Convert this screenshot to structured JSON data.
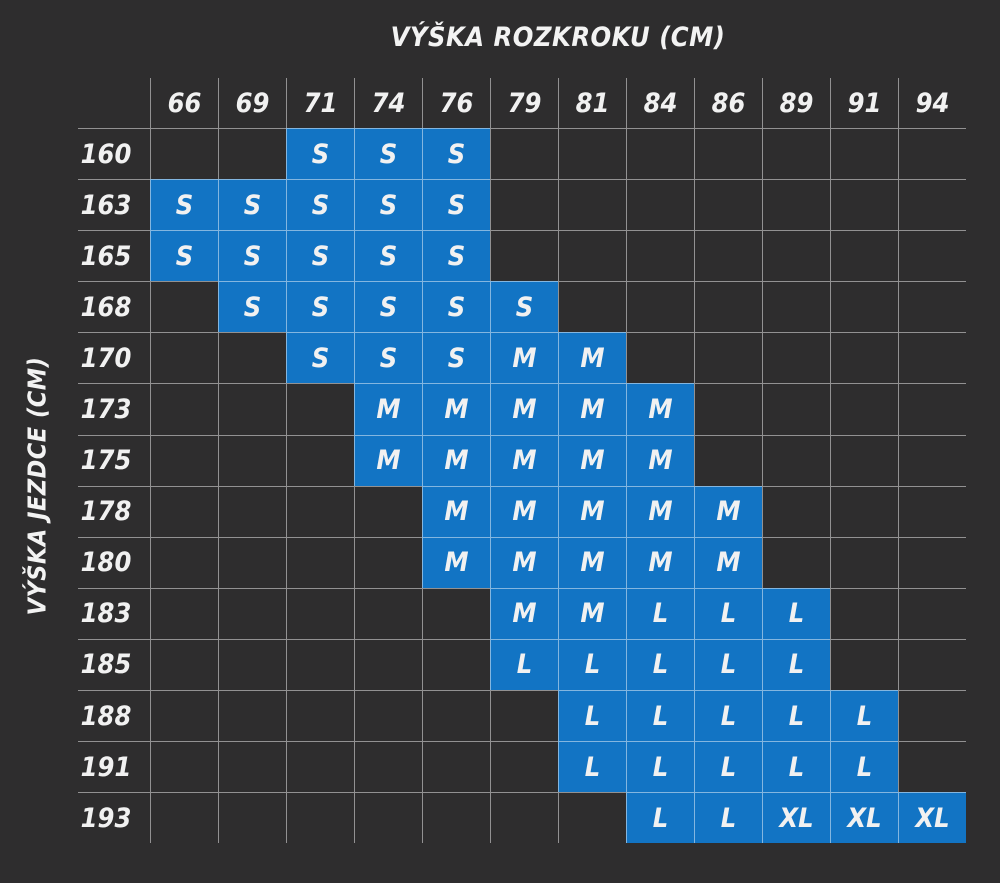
{
  "chart_data": {
    "type": "heatmap",
    "x_axis_title": "VÝŠKA ROZKROKU (CM)",
    "y_axis_title": "VÝŠKA JEZDCE (CM)",
    "x_categories": [
      "66",
      "69",
      "71",
      "74",
      "76",
      "79",
      "81",
      "84",
      "86",
      "89",
      "91",
      "94"
    ],
    "y_categories": [
      "160",
      "163",
      "165",
      "168",
      "170",
      "173",
      "175",
      "178",
      "180",
      "183",
      "185",
      "188",
      "191",
      "193"
    ],
    "cell_values_legend": [
      "S",
      "M",
      "L",
      "XL"
    ],
    "matrix": [
      [
        "",
        "",
        "S",
        "S",
        "S",
        "",
        "",
        "",
        "",
        "",
        "",
        ""
      ],
      [
        "S",
        "S",
        "S",
        "S",
        "S",
        "",
        "",
        "",
        "",
        "",
        "",
        ""
      ],
      [
        "S",
        "S",
        "S",
        "S",
        "S",
        "",
        "",
        "",
        "",
        "",
        "",
        ""
      ],
      [
        "",
        "S",
        "S",
        "S",
        "S",
        "S",
        "",
        "",
        "",
        "",
        "",
        ""
      ],
      [
        "",
        "",
        "S",
        "S",
        "S",
        "M",
        "M",
        "",
        "",
        "",
        "",
        ""
      ],
      [
        "",
        "",
        "",
        "M",
        "M",
        "M",
        "M",
        "M",
        "",
        "",
        "",
        ""
      ],
      [
        "",
        "",
        "",
        "M",
        "M",
        "M",
        "M",
        "M",
        "",
        "",
        "",
        ""
      ],
      [
        "",
        "",
        "",
        "",
        "M",
        "M",
        "M",
        "M",
        "M",
        "",
        "",
        ""
      ],
      [
        "",
        "",
        "",
        "",
        "M",
        "M",
        "M",
        "M",
        "M",
        "",
        "",
        ""
      ],
      [
        "",
        "",
        "",
        "",
        "",
        "M",
        "M",
        "L",
        "L",
        "L",
        "",
        ""
      ],
      [
        "",
        "",
        "",
        "",
        "",
        "L",
        "L",
        "L",
        "L",
        "L",
        "",
        ""
      ],
      [
        "",
        "",
        "",
        "",
        "",
        "",
        "L",
        "L",
        "L",
        "L",
        "L",
        ""
      ],
      [
        "",
        "",
        "",
        "",
        "",
        "",
        "L",
        "L",
        "L",
        "L",
        "L",
        ""
      ],
      [
        "",
        "",
        "",
        "",
        "",
        "",
        "",
        "L",
        "L",
        "XL",
        "XL",
        "XL"
      ]
    ],
    "layout": {
      "grid": true,
      "legend_position": "none",
      "x_axis_position": "top",
      "y_axis_position": "left"
    }
  },
  "colors": {
    "background": "#2e2d2e",
    "cell_fill": "#1274c4",
    "grid_line": "rgba(255,255,255,0.48)",
    "header_text": "#f3f3f3",
    "cell_text": "#d5eafa"
  }
}
